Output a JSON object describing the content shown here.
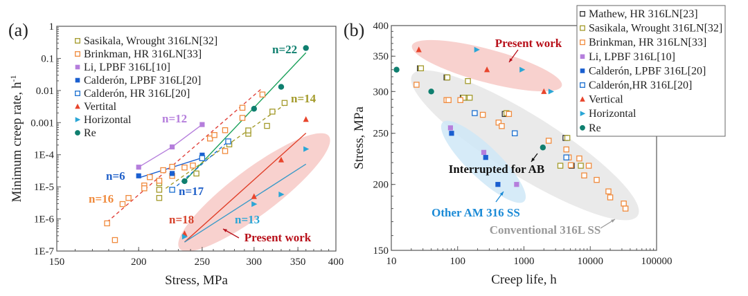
{
  "chart_data": [
    {
      "panel_label": "(a)",
      "type": "scatter",
      "xlabel": "Stress, MPa",
      "ylabel": "Minimum creep rate, h",
      "ylabel_sup": "-1",
      "xscale": "log",
      "yscale": "log",
      "xlim": [
        150,
        400
      ],
      "ylim": [
        1e-07,
        1
      ],
      "xticks": [
        "150",
        "200",
        "250",
        "300",
        "350",
        "400"
      ],
      "xtick_values": [
        150,
        200,
        250,
        300,
        350,
        400
      ],
      "yticks": [
        "1E-7",
        "1E-6",
        "1E-5",
        "1E-4",
        "0.001",
        "0.01",
        "0.1",
        "1"
      ],
      "ytick_values": [
        1e-07,
        1e-06,
        1e-05,
        0.0001,
        0.001,
        0.01,
        0.1,
        1
      ],
      "legend_position": "top-left",
      "series": [
        {
          "name": "Sasikala, Wrought 316LN[32]",
          "marker": "square-open",
          "color": "#a39a2a",
          "points": [
            [
              215,
              4.5e-06
            ],
            [
              215,
              8.1e-06
            ],
            [
              215,
              1.3e-05
            ],
            [
              245,
              2.6e-05
            ],
            [
              275,
              0.00021
            ],
            [
              294,
              0.00045
            ],
            [
              294,
              0.00057
            ],
            [
              314,
              0.00079
            ],
            [
              320,
              0.0022
            ],
            [
              334,
              0.0041
            ]
          ]
        },
        {
          "name": "Brinkman, HR 316LN[33]",
          "marker": "square-open",
          "color": "#f08a3c",
          "points": [
            [
              179,
              7.3e-07
            ],
            [
              184,
              2.2e-07
            ],
            [
              189,
              2.9e-06
            ],
            [
              193,
              4.5e-06
            ],
            [
              204,
              1.1e-05
            ],
            [
              204,
              9e-06
            ],
            [
              208,
              2e-05
            ],
            [
              215,
              1.55e-05
            ],
            [
              218,
              3.3e-05
            ],
            [
              225,
              4.2e-05
            ],
            [
              225,
              2.2e-05
            ],
            [
              235,
              4e-05
            ],
            [
              242,
              4.6e-05
            ],
            [
              257,
              0.00032
            ],
            [
              261,
              0.00041
            ],
            [
              271,
              0.00058
            ],
            [
              271,
              0.00013
            ],
            [
              288,
              0.0029
            ],
            [
              288,
              0.0014
            ],
            [
              309,
              0.0075
            ]
          ]
        },
        {
          "name": "Li, LPBF 316L[10]",
          "marker": "square-filled",
          "color": "#b57edc",
          "points": [
            [
              200,
              4.1e-05
            ],
            [
              225,
              0.000175
            ],
            [
              250,
              0.00087
            ]
          ]
        },
        {
          "name": "Calderón, LPBF 316L[20]",
          "marker": "square-filled",
          "color": "#1a5fd0",
          "points": [
            [
              200,
              2.2e-05
            ],
            [
              225,
              2.6e-05
            ],
            [
              250,
              9.7e-05
            ]
          ]
        },
        {
          "name": "Calderón, HR 316L[20]",
          "marker": "square-open",
          "color": "#1a6fd0",
          "points": [
            [
              225,
              8.1e-06
            ],
            [
              250,
              7.8e-05
            ],
            [
              274,
              0.00026
            ]
          ]
        },
        {
          "name": "Vertital",
          "marker": "triangle-up",
          "color": "#e8452c",
          "points": [
            [
              235,
              3.5e-07
            ],
            [
              300,
              5e-06
            ],
            [
              330,
              6.9e-05
            ],
            [
              360,
              0.00126
            ]
          ]
        },
        {
          "name": "Horizontal",
          "marker": "triangle-right",
          "color": "#2aa6d6",
          "points": [
            [
              235,
              2.8e-07
            ],
            [
              300,
              2.9e-06
            ],
            [
              330,
              5.8e-06
            ],
            [
              360,
              0.00015
            ]
          ]
        },
        {
          "name": "Re",
          "marker": "circle",
          "color": "#0f7f6f",
          "points": [
            [
              235,
              1.5e-05
            ],
            [
              300,
              0.0027
            ],
            [
              330,
              0.013
            ],
            [
              360,
              0.21
            ]
          ]
        }
      ],
      "fit_lines": [
        {
          "label": "n=22",
          "color": "#1aa05a",
          "label_color": "#0f7f6f",
          "dash": false,
          "points": [
            [
              235,
              1.5e-05
            ],
            [
              360,
              0.15
            ]
          ]
        },
        {
          "label": "n=14",
          "color": "#a39a2a",
          "label_color": "#a39a2a",
          "dash": true,
          "points": [
            [
              220,
              9e-06
            ],
            [
              334,
              0.0036
            ]
          ]
        },
        {
          "label": "n=12",
          "color": "#b57edc",
          "label_color": "#b57edc",
          "dash": false,
          "points": [
            [
              200,
              4.1e-05
            ],
            [
              225,
              0.000175
            ],
            [
              250,
              0.00087
            ]
          ]
        },
        {
          "label": "n=6",
          "color": "#1a5fd0",
          "label_color": "#1f5fc8",
          "dash": false,
          "points": [
            [
              200,
              1.9e-05
            ],
            [
              250,
              8e-05
            ]
          ]
        },
        {
          "label": "n=17",
          "color": "#1a6fd0",
          "label_color": "#1f5fc8",
          "dash": true,
          "points": [
            [
              225,
              8e-06
            ],
            [
              274,
              0.00026
            ]
          ]
        },
        {
          "label": "n=16",
          "color": "#e0403a",
          "label_color": "#f08a3c",
          "dash": true,
          "points": [
            [
              179,
              8e-07
            ],
            [
              309,
              0.012
            ]
          ]
        },
        {
          "label": "n=18",
          "color": "#e0402a",
          "label_color": "#d6402a",
          "dash": false,
          "points": [
            [
              235,
              1.9e-07
            ],
            [
              360,
              0.00047
            ]
          ]
        },
        {
          "label": "n=13",
          "color": "#3a9ac8",
          "label_color": "#2aa6d6",
          "dash": false,
          "points": [
            [
              235,
              1.9e-07
            ],
            [
              360,
              5.1e-05
            ]
          ]
        }
      ],
      "annotations": [
        {
          "text": "Present work",
          "color": "#b8101a"
        }
      ],
      "highlight_colors": {
        "present_work": "#f7c9c6"
      }
    },
    {
      "panel_label": "(b)",
      "type": "scatter",
      "xlabel": "Creep life, h",
      "ylabel": "Stress, MPa",
      "xscale": "log",
      "yscale": "log",
      "xlim": [
        10,
        100000
      ],
      "ylim": [
        150,
        400
      ],
      "xticks": [
        "10",
        "100",
        "1000",
        "10000",
        "100000"
      ],
      "xtick_values": [
        10,
        100,
        1000,
        10000,
        100000
      ],
      "yticks": [
        "150",
        "200",
        "250",
        "300",
        "350",
        "400"
      ],
      "ytick_values": [
        150,
        200,
        250,
        300,
        350,
        400
      ],
      "legend_position": "top-right",
      "series": [
        {
          "name": "Mathew, HR 316LN[23]",
          "marker": "square-open",
          "color": "#333333",
          "points": [
            [
              27,
              332
            ],
            [
              68,
              319
            ],
            [
              120,
              292
            ],
            [
              143,
              292
            ],
            [
              514,
              272
            ],
            [
              4230,
              245
            ],
            [
              5250,
              217
            ]
          ]
        },
        {
          "name": "Sasikala, Wrought 316LN[32]",
          "marker": "square-open",
          "color": "#a39a2a",
          "points": [
            [
              28,
              332
            ],
            [
              70,
              319
            ],
            [
              143,
              314
            ],
            [
              152,
              292
            ],
            [
              123,
              292
            ],
            [
              545,
              273
            ],
            [
              4510,
              245
            ],
            [
              3540,
              217
            ],
            [
              7200,
              217
            ]
          ]
        },
        {
          "name": "Brinkman, HR 316LN[33]",
          "marker": "square-open",
          "color": "#f08a3c",
          "points": [
            [
              24,
              309
            ],
            [
              68,
              289
            ],
            [
              73,
              289
            ],
            [
              110,
              289
            ],
            [
              240,
              271
            ],
            [
              414,
              262
            ],
            [
              463,
              258
            ],
            [
              594,
              272
            ],
            [
              2360,
              242
            ],
            [
              4360,
              233
            ],
            [
              4730,
              225
            ],
            [
              5090,
              217.5
            ],
            [
              6840,
              224
            ],
            [
              8100,
              208
            ],
            [
              9500,
              217
            ],
            [
              12500,
              204
            ],
            [
              18800,
              194
            ],
            [
              20000,
              189
            ],
            [
              32000,
              184
            ],
            [
              34000,
              180
            ]
          ]
        },
        {
          "name": "Li, LPBF 316L[10]",
          "marker": "square-filled",
          "color": "#b57edc",
          "points": [
            [
              78,
              256
            ],
            [
              248,
              230
            ],
            [
              775,
              200
            ]
          ]
        },
        {
          "name": "Calderón, LPBF 316L[20]",
          "marker": "square-filled",
          "color": "#1a5fd0",
          "points": [
            [
              81,
              250
            ],
            [
              265,
              225
            ],
            [
              405,
              200
            ]
          ]
        },
        {
          "name": "Calderón,HR 316L[20]",
          "marker": "square-open",
          "color": "#1a6fd0",
          "points": [
            [
              181,
              273
            ],
            [
              727,
              250
            ],
            [
              4360,
              225
            ]
          ]
        },
        {
          "name": "Vertical",
          "marker": "triangle-up",
          "color": "#e8452c",
          "points": [
            [
              26,
              360
            ],
            [
              277,
              330
            ],
            [
              2000,
              300
            ]
          ]
        },
        {
          "name": "Horizontal",
          "marker": "triangle-right",
          "color": "#2aa6d6",
          "points": [
            [
              194,
              360
            ],
            [
              937,
              330
            ],
            [
              2550,
              300
            ]
          ]
        },
        {
          "name": "Re",
          "marker": "circle",
          "color": "#0f7f6f",
          "points": [
            [
              12,
              330
            ],
            [
              40,
              300
            ],
            [
              1930,
              235
            ]
          ]
        }
      ],
      "annotations": [
        {
          "text": "Present work",
          "color": "#b8101a"
        },
        {
          "text": "Interrupted for AB",
          "color": "#111111"
        },
        {
          "text": "Other AM 316 SS",
          "color": "#1a8ad6"
        },
        {
          "text": "Conventional 316L SS",
          "color": "#9a9a9a"
        }
      ],
      "highlight_colors": {
        "present_work": "#f7c9c6",
        "conventional": "#e6e6e6",
        "other_am": "#cfe8f7"
      }
    }
  ]
}
